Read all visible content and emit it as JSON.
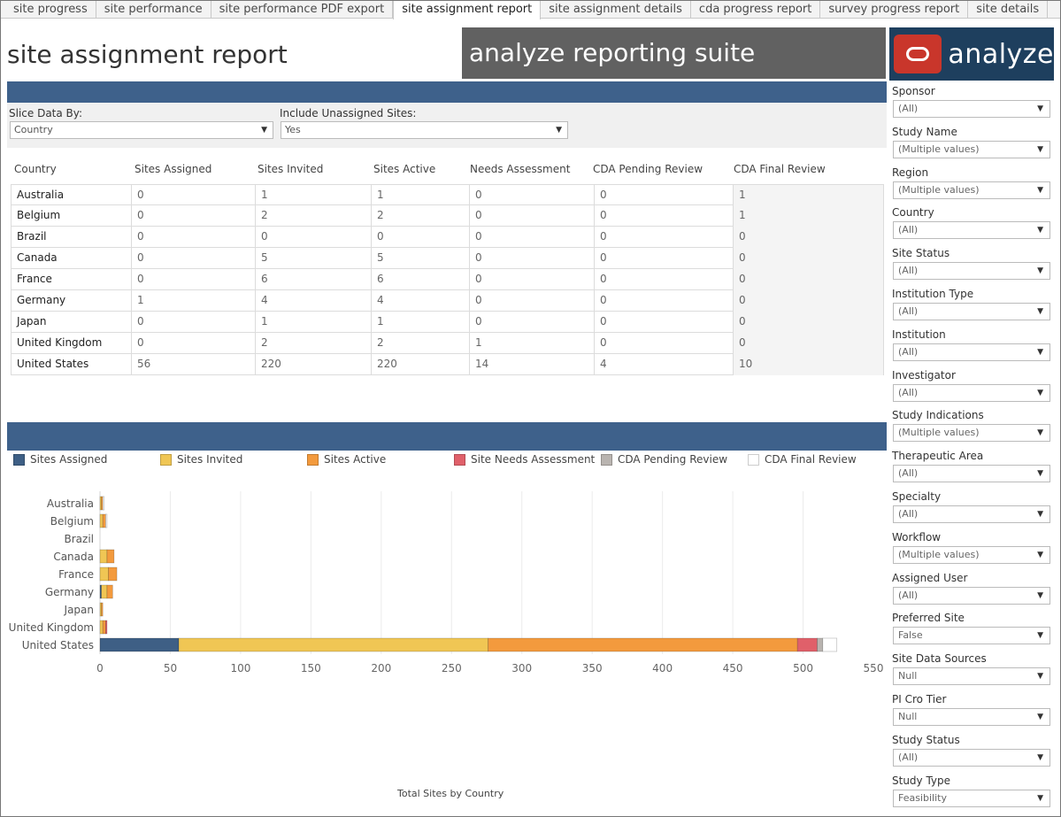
{
  "tabs": [
    {
      "label": "site progress",
      "active": false
    },
    {
      "label": "site performance",
      "active": false
    },
    {
      "label": "site performance PDF export",
      "active": false
    },
    {
      "label": "site assignment report",
      "active": true
    },
    {
      "label": "site assignment details",
      "active": false
    },
    {
      "label": "cda progress report",
      "active": false
    },
    {
      "label": "survey progress report",
      "active": false
    },
    {
      "label": "site details",
      "active": false
    }
  ],
  "header": {
    "title": "site assignment report",
    "suite": "analyze reporting suite",
    "logo_text": "analyze"
  },
  "controls": {
    "slice_label": "Slice Data By:",
    "slice_value": "Country",
    "unassigned_label": "Include Unassigned Sites:",
    "unassigned_value": "Yes"
  },
  "table": {
    "columns": [
      "Country",
      "Sites Assigned",
      "Sites Invited",
      "Sites Active",
      "Needs Assessment",
      "CDA Pending Review",
      "CDA Final Review"
    ],
    "rows": [
      [
        "Australia",
        "0",
        "1",
        "1",
        "0",
        "0",
        "1"
      ],
      [
        "Belgium",
        "0",
        "2",
        "2",
        "0",
        "0",
        "1"
      ],
      [
        "Brazil",
        "0",
        "0",
        "0",
        "0",
        "0",
        "0"
      ],
      [
        "Canada",
        "0",
        "5",
        "5",
        "0",
        "0",
        "0"
      ],
      [
        "France",
        "0",
        "6",
        "6",
        "0",
        "0",
        "0"
      ],
      [
        "Germany",
        "1",
        "4",
        "4",
        "0",
        "0",
        "0"
      ],
      [
        "Japan",
        "0",
        "1",
        "1",
        "0",
        "0",
        "0"
      ],
      [
        "United Kingdom",
        "0",
        "2",
        "2",
        "1",
        "0",
        "0"
      ],
      [
        "United States",
        "56",
        "220",
        "220",
        "14",
        "4",
        "10"
      ]
    ]
  },
  "legend": [
    {
      "label": "Sites Assigned",
      "color": "#3e5f85"
    },
    {
      "label": "Sites Invited",
      "color": "#f0c654"
    },
    {
      "label": "Sites Active",
      "color": "#f39a3d"
    },
    {
      "label": "Site Needs Assessment",
      "color": "#e0606a"
    },
    {
      "label": "CDA Pending Review",
      "color": "#b9b4b0"
    },
    {
      "label": "CDA Final Review",
      "color": "#ffffff"
    }
  ],
  "chart_data": {
    "type": "bar",
    "orientation": "horizontal",
    "stacked": true,
    "title": "Total Sites by Country",
    "categories": [
      "Australia",
      "Belgium",
      "Brazil",
      "Canada",
      "France",
      "Germany",
      "Japan",
      "United Kingdom",
      "United States"
    ],
    "series": [
      {
        "name": "Sites Assigned",
        "values": [
          0,
          0,
          0,
          0,
          0,
          1,
          0,
          0,
          56
        ]
      },
      {
        "name": "Sites Invited",
        "values": [
          1,
          2,
          0,
          5,
          6,
          4,
          1,
          2,
          220
        ]
      },
      {
        "name": "Sites Active",
        "values": [
          1,
          2,
          0,
          5,
          6,
          4,
          1,
          2,
          220
        ]
      },
      {
        "name": "Site Needs Assessment",
        "values": [
          0,
          0,
          0,
          0,
          0,
          0,
          0,
          1,
          14
        ]
      },
      {
        "name": "CDA Pending Review",
        "values": [
          0,
          0,
          0,
          0,
          0,
          0,
          0,
          0,
          4
        ]
      },
      {
        "name": "CDA Final Review",
        "values": [
          1,
          1,
          0,
          0,
          0,
          0,
          0,
          0,
          10
        ]
      }
    ],
    "xlim": [
      0,
      550
    ],
    "xticks": [
      "0",
      "50",
      "100",
      "150",
      "200",
      "250",
      "300",
      "350",
      "400",
      "450",
      "500",
      "550"
    ],
    "grid": true,
    "legend_position": "top"
  },
  "filters": [
    {
      "label": "Sponsor",
      "value": "(All)"
    },
    {
      "label": "Study Name",
      "value": "(Multiple values)"
    },
    {
      "label": "Region",
      "value": "(Multiple values)"
    },
    {
      "label": "Country",
      "value": "(All)"
    },
    {
      "label": "Site Status",
      "value": "(All)"
    },
    {
      "label": "Institution Type",
      "value": "(All)"
    },
    {
      "label": "Institution",
      "value": "(All)"
    },
    {
      "label": "Investigator",
      "value": "(All)"
    },
    {
      "label": "Study Indications",
      "value": "(Multiple values)"
    },
    {
      "label": "Therapeutic Area",
      "value": "(All)"
    },
    {
      "label": "Specialty",
      "value": "(All)"
    },
    {
      "label": "Workflow",
      "value": "(Multiple values)"
    },
    {
      "label": "Assigned User",
      "value": "(All)"
    },
    {
      "label": "Preferred Site",
      "value": "False"
    },
    {
      "label": "Site Data Sources",
      "value": "Null"
    },
    {
      "label": "PI Cro Tier",
      "value": "Null"
    },
    {
      "label": "Study Status",
      "value": "(All)"
    },
    {
      "label": "Study Type",
      "value": "Feasibility"
    }
  ],
  "icons": {
    "dropdown": "chevron-down-icon"
  }
}
